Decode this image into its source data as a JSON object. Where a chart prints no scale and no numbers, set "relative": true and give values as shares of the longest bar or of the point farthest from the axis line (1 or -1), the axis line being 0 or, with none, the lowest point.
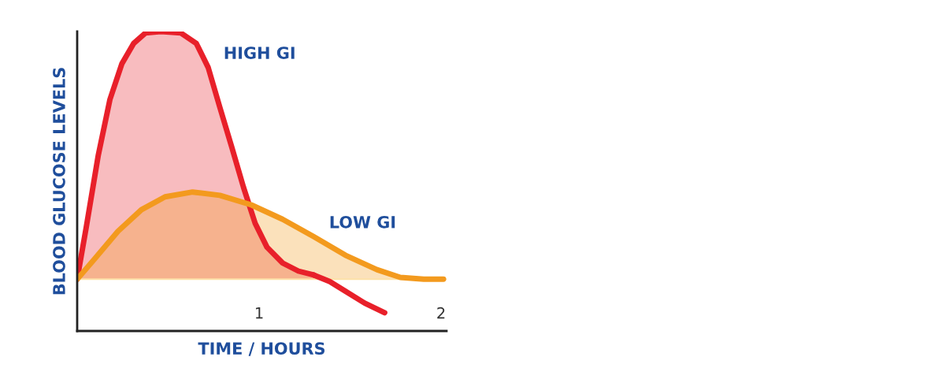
{
  "chart_data": {
    "type": "area",
    "relative": true,
    "xlabel": "TIME / HOURS",
    "ylabel": "BLOOD GLUCOSE LEVELS",
    "xlim": [
      0,
      2.03
    ],
    "ref_lines": [
      {
        "axis": "y",
        "value": 0.173,
        "color": "#fde1a8"
      }
    ],
    "xticks": [
      1,
      2
    ],
    "grid": false,
    "legend": false,
    "marker": "none",
    "line_style": "solid",
    "series": [
      {
        "color": "#e8202a",
        "x": [
          0,
          0.05,
          0.116,
          0.18,
          0.246,
          0.31,
          0.375,
          0.46,
          0.57,
          0.655,
          0.72,
          0.784,
          0.85,
          0.914,
          0.978,
          1.043,
          1.129,
          1.216,
          1.3
        ],
        "values": [
          0.173,
          0.347,
          0.587,
          0.773,
          0.893,
          0.96,
          0.995,
          1.0,
          0.995,
          0.96,
          0.88,
          0.747,
          0.613,
          0.48,
          0.36,
          0.28,
          0.227,
          0.2,
          0.187
        ]
      },
      {
        "type": "line",
        "color": "#e8202a",
        "x": [
          1.3,
          1.388,
          1.474,
          1.58,
          1.69
        ],
        "values": [
          0.187,
          0.165,
          0.133,
          0.093,
          0.061
        ]
      },
      {
        "color": "#f39a1e",
        "x": [
          0,
          0.095,
          0.224,
          0.353,
          0.483,
          0.634,
          0.784,
          0.957,
          1.129,
          1.3,
          1.474,
          1.647,
          1.776,
          1.905,
          2.013
        ],
        "values": [
          0.173,
          0.24,
          0.333,
          0.405,
          0.448,
          0.464,
          0.453,
          0.421,
          0.373,
          0.315,
          0.253,
          0.205,
          0.179,
          0.173,
          0.173
        ]
      }
    ],
    "annotations": [
      {
        "text": "HIGH GI",
        "x": 0.72,
        "y": 0.88
      },
      {
        "text": "LOW GI",
        "x": 1.3,
        "y": 0.315
      }
    ]
  }
}
